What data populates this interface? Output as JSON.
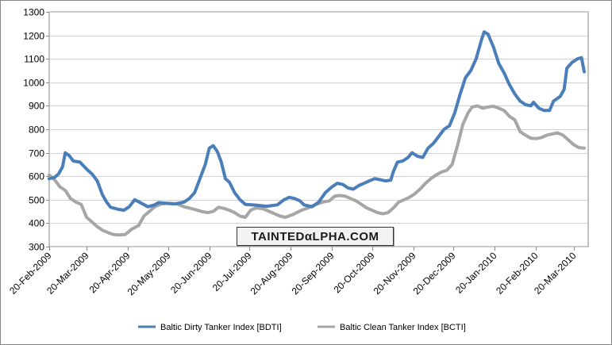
{
  "chart_data": {
    "type": "line",
    "title": "",
    "xlabel": "",
    "ylabel": "",
    "ylim": [
      300,
      1300
    ],
    "yticks": [
      300,
      400,
      500,
      600,
      700,
      800,
      900,
      1000,
      1100,
      1200,
      1300
    ],
    "xlim": [
      "2009-02-20",
      "2010-03-31"
    ],
    "xticks": [
      "20-Feb-2009",
      "20-Mar-2009",
      "20-Apr-2009",
      "20-May-2009",
      "20-Jun-2009",
      "20-Jul-2009",
      "20-Aug-2009",
      "20-Sep-2009",
      "20-Oct-2009",
      "20-Nov-2009",
      "20-Dec-2009",
      "20-Jan-2010",
      "20-Feb-2010",
      "20-Mar-2010"
    ],
    "grid": true,
    "legend_position": "bottom",
    "series": [
      {
        "name": "Baltic Dirty Tanker Index [BDTI]",
        "color": "#4a7ebb",
        "points": [
          [
            "2009-02-20",
            590
          ],
          [
            "2009-02-24",
            595
          ],
          [
            "2009-02-27",
            610
          ],
          [
            "2009-03-02",
            640
          ],
          [
            "2009-03-04",
            700
          ],
          [
            "2009-03-07",
            688
          ],
          [
            "2009-03-10",
            665
          ],
          [
            "2009-03-15",
            660
          ],
          [
            "2009-03-20",
            630
          ],
          [
            "2009-03-24",
            610
          ],
          [
            "2009-03-28",
            580
          ],
          [
            "2009-04-01",
            520
          ],
          [
            "2009-04-04",
            490
          ],
          [
            "2009-04-07",
            468
          ],
          [
            "2009-04-12",
            460
          ],
          [
            "2009-04-17",
            455
          ],
          [
            "2009-04-21",
            470
          ],
          [
            "2009-04-25",
            500
          ],
          [
            "2009-04-30",
            485
          ],
          [
            "2009-05-05",
            470
          ],
          [
            "2009-05-10",
            478
          ],
          [
            "2009-05-13",
            488
          ],
          [
            "2009-05-18",
            485
          ],
          [
            "2009-05-25",
            482
          ],
          [
            "2009-06-01",
            490
          ],
          [
            "2009-06-05",
            505
          ],
          [
            "2009-06-09",
            530
          ],
          [
            "2009-06-13",
            590
          ],
          [
            "2009-06-17",
            650
          ],
          [
            "2009-06-20",
            720
          ],
          [
            "2009-06-23",
            730
          ],
          [
            "2009-06-26",
            705
          ],
          [
            "2009-06-29",
            660
          ],
          [
            "2009-07-02",
            590
          ],
          [
            "2009-07-05",
            575
          ],
          [
            "2009-07-09",
            530
          ],
          [
            "2009-07-13",
            500
          ],
          [
            "2009-07-17",
            480
          ],
          [
            "2009-07-25",
            477
          ],
          [
            "2009-08-02",
            472
          ],
          [
            "2009-08-10",
            478
          ],
          [
            "2009-08-15",
            500
          ],
          [
            "2009-08-19",
            510
          ],
          [
            "2009-08-23",
            505
          ],
          [
            "2009-08-27",
            495
          ],
          [
            "2009-08-30",
            478
          ],
          [
            "2009-09-05",
            470
          ],
          [
            "2009-09-10",
            490
          ],
          [
            "2009-09-15",
            530
          ],
          [
            "2009-09-20",
            555
          ],
          [
            "2009-09-24",
            570
          ],
          [
            "2009-09-28",
            565
          ],
          [
            "2009-10-02",
            550
          ],
          [
            "2009-10-06",
            545
          ],
          [
            "2009-10-10",
            560
          ],
          [
            "2009-10-14",
            570
          ],
          [
            "2009-10-18",
            580
          ],
          [
            "2009-10-22",
            590
          ],
          [
            "2009-10-26",
            585
          ],
          [
            "2009-10-30",
            580
          ],
          [
            "2009-11-03",
            583
          ],
          [
            "2009-11-05",
            620
          ],
          [
            "2009-11-08",
            660
          ],
          [
            "2009-11-12",
            665
          ],
          [
            "2009-11-16",
            680
          ],
          [
            "2009-11-19",
            700
          ],
          [
            "2009-11-23",
            685
          ],
          [
            "2009-11-27",
            680
          ],
          [
            "2009-12-01",
            720
          ],
          [
            "2009-12-05",
            740
          ],
          [
            "2009-12-09",
            770
          ],
          [
            "2009-12-13",
            800
          ],
          [
            "2009-12-17",
            815
          ],
          [
            "2009-12-21",
            870
          ],
          [
            "2009-12-25",
            950
          ],
          [
            "2009-12-29",
            1020
          ],
          [
            "2010-01-02",
            1050
          ],
          [
            "2010-01-06",
            1100
          ],
          [
            "2010-01-10",
            1180
          ],
          [
            "2010-01-12",
            1215
          ],
          [
            "2010-01-15",
            1205
          ],
          [
            "2010-01-19",
            1150
          ],
          [
            "2010-01-23",
            1080
          ],
          [
            "2010-01-27",
            1040
          ],
          [
            "2010-01-31",
            990
          ],
          [
            "2010-02-04",
            950
          ],
          [
            "2010-02-08",
            920
          ],
          [
            "2010-02-12",
            905
          ],
          [
            "2010-02-16",
            900
          ],
          [
            "2010-02-18",
            915
          ],
          [
            "2010-02-22",
            890
          ],
          [
            "2010-02-26",
            880
          ],
          [
            "2010-03-02",
            880
          ],
          [
            "2010-03-05",
            920
          ],
          [
            "2010-03-10",
            940
          ],
          [
            "2010-03-13",
            970
          ],
          [
            "2010-03-15",
            1060
          ],
          [
            "2010-03-19",
            1085
          ],
          [
            "2010-03-23",
            1100
          ],
          [
            "2010-03-26",
            1105
          ],
          [
            "2010-03-28",
            1045
          ]
        ]
      },
      {
        "name": "Baltic Clean Tanker Index [BCTI]",
        "color": "#a6a6a6",
        "points": [
          [
            "2009-02-20",
            605
          ],
          [
            "2009-02-24",
            585
          ],
          [
            "2009-02-28",
            555
          ],
          [
            "2009-03-04",
            540
          ],
          [
            "2009-03-08",
            505
          ],
          [
            "2009-03-12",
            490
          ],
          [
            "2009-03-16",
            480
          ],
          [
            "2009-03-20",
            425
          ],
          [
            "2009-03-24",
            405
          ],
          [
            "2009-03-28",
            385
          ],
          [
            "2009-04-01",
            370
          ],
          [
            "2009-04-05",
            360
          ],
          [
            "2009-04-09",
            352
          ],
          [
            "2009-04-13",
            350
          ],
          [
            "2009-04-18",
            352
          ],
          [
            "2009-04-23",
            375
          ],
          [
            "2009-04-28",
            390
          ],
          [
            "2009-05-02",
            430
          ],
          [
            "2009-05-06",
            450
          ],
          [
            "2009-05-10",
            470
          ],
          [
            "2009-05-15",
            482
          ],
          [
            "2009-05-20",
            485
          ],
          [
            "2009-05-27",
            482
          ],
          [
            "2009-06-01",
            470
          ],
          [
            "2009-06-08",
            460
          ],
          [
            "2009-06-14",
            450
          ],
          [
            "2009-06-19",
            445
          ],
          [
            "2009-06-23",
            450
          ],
          [
            "2009-06-27",
            468
          ],
          [
            "2009-07-01",
            463
          ],
          [
            "2009-07-05",
            455
          ],
          [
            "2009-07-09",
            445
          ],
          [
            "2009-07-13",
            430
          ],
          [
            "2009-07-17",
            425
          ],
          [
            "2009-07-21",
            455
          ],
          [
            "2009-07-25",
            465
          ],
          [
            "2009-07-30",
            462
          ],
          [
            "2009-08-04",
            450
          ],
          [
            "2009-08-08",
            440
          ],
          [
            "2009-08-12",
            430
          ],
          [
            "2009-08-16",
            425
          ],
          [
            "2009-08-22",
            438
          ],
          [
            "2009-08-28",
            455
          ],
          [
            "2009-09-02",
            465
          ],
          [
            "2009-09-07",
            478
          ],
          [
            "2009-09-13",
            490
          ],
          [
            "2009-09-18",
            495
          ],
          [
            "2009-09-22",
            515
          ],
          [
            "2009-09-26",
            518
          ],
          [
            "2009-09-30",
            515
          ],
          [
            "2009-10-04",
            505
          ],
          [
            "2009-10-08",
            495
          ],
          [
            "2009-10-12",
            480
          ],
          [
            "2009-10-16",
            465
          ],
          [
            "2009-10-20",
            455
          ],
          [
            "2009-10-24",
            445
          ],
          [
            "2009-10-28",
            440
          ],
          [
            "2009-11-01",
            445
          ],
          [
            "2009-11-05",
            465
          ],
          [
            "2009-11-09",
            490
          ],
          [
            "2009-11-13",
            500
          ],
          [
            "2009-11-17",
            510
          ],
          [
            "2009-11-21",
            525
          ],
          [
            "2009-11-25",
            545
          ],
          [
            "2009-11-29",
            570
          ],
          [
            "2009-12-03",
            590
          ],
          [
            "2009-12-07",
            605
          ],
          [
            "2009-12-11",
            618
          ],
          [
            "2009-12-15",
            625
          ],
          [
            "2009-12-19",
            650
          ],
          [
            "2009-12-23",
            730
          ],
          [
            "2009-12-27",
            820
          ],
          [
            "2009-12-31",
            870
          ],
          [
            "2010-01-03",
            895
          ],
          [
            "2010-01-07",
            900
          ],
          [
            "2010-01-11",
            890
          ],
          [
            "2010-01-15",
            895
          ],
          [
            "2010-01-19",
            898
          ],
          [
            "2010-01-23",
            890
          ],
          [
            "2010-01-27",
            880
          ],
          [
            "2010-01-31",
            855
          ],
          [
            "2010-02-04",
            840
          ],
          [
            "2010-02-08",
            790
          ],
          [
            "2010-02-12",
            775
          ],
          [
            "2010-02-16",
            762
          ],
          [
            "2010-02-20",
            760
          ],
          [
            "2010-02-24",
            765
          ],
          [
            "2010-02-28",
            775
          ],
          [
            "2010-03-04",
            780
          ],
          [
            "2010-03-08",
            785
          ],
          [
            "2010-03-12",
            775
          ],
          [
            "2010-03-16",
            755
          ],
          [
            "2010-03-20",
            735
          ],
          [
            "2010-03-24",
            722
          ],
          [
            "2010-03-28",
            720
          ]
        ]
      }
    ]
  },
  "watermark": {
    "text": "TAINTEDαLPHA.COM"
  }
}
